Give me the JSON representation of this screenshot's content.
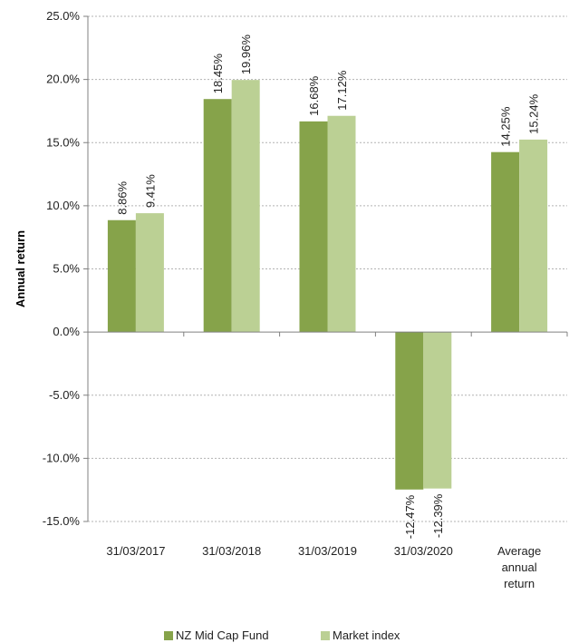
{
  "chart_data": {
    "type": "bar",
    "title": "",
    "xlabel": "",
    "ylabel": "Annual return",
    "ylim": [
      -15,
      25
    ],
    "yticks": [
      -15,
      -10,
      -5,
      0,
      5,
      10,
      15,
      20,
      25
    ],
    "ytick_labels": [
      "-15.0%",
      "-10.0%",
      "-5.0%",
      "0.0%",
      "5.0%",
      "10.0%",
      "15.0%",
      "20.0%",
      "25.0%"
    ],
    "categories": [
      [
        "31/03/2017"
      ],
      [
        "31/03/2018"
      ],
      [
        "31/03/2019"
      ],
      [
        "31/03/2020"
      ],
      [
        "Average",
        "annual",
        "return"
      ]
    ],
    "series": [
      {
        "name": "NZ Mid Cap Fund",
        "color": "#86A34A",
        "values": [
          8.86,
          18.45,
          16.68,
          -12.47,
          14.25
        ],
        "labels": [
          "8.86%",
          "18.45%",
          "16.68%",
          "-12.47%",
          "14.25%"
        ]
      },
      {
        "name": "Market index",
        "color": "#BBD094",
        "values": [
          9.41,
          19.96,
          17.12,
          -12.39,
          15.24
        ],
        "labels": [
          "9.41%",
          "19.96%",
          "17.12%",
          "-12.39%",
          "15.24%"
        ]
      }
    ],
    "grid": true,
    "legend": "bottom"
  }
}
